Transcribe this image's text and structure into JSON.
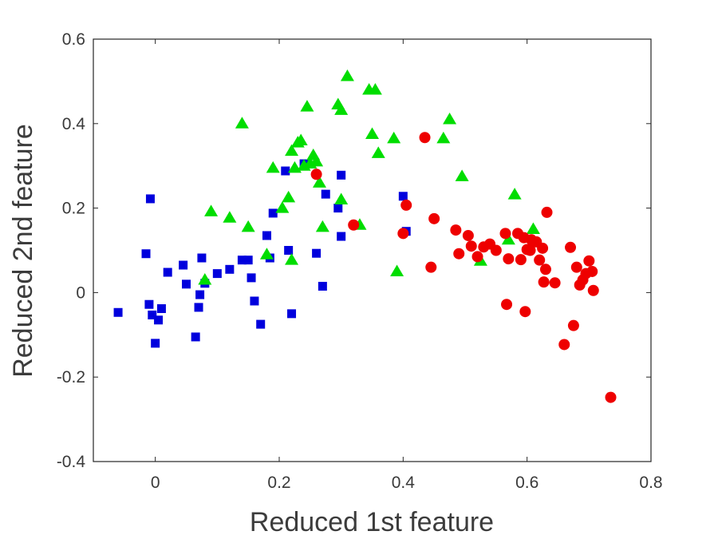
{
  "chart_data": {
    "type": "scatter",
    "title": "",
    "xlabel": "Reduced 1st feature",
    "ylabel": "Reduced 2nd feature",
    "xlim": [
      -0.1,
      0.8
    ],
    "ylim": [
      -0.4,
      0.6
    ],
    "xticks": [
      0,
      0.2,
      0.4,
      0.6,
      0.8
    ],
    "xtick_labels": [
      "0",
      "0.2",
      "0.4",
      "0.6",
      "0.8"
    ],
    "yticks": [
      -0.4,
      -0.2,
      0,
      0.2,
      0.4,
      0.6
    ],
    "ytick_labels": [
      "-0.4",
      "-0.2",
      "0",
      "0.2",
      "0.4",
      "0.6"
    ],
    "grid": false,
    "series": [
      {
        "marker": "square",
        "color": "#0000dd",
        "points": [
          [
            -0.06,
            -0.047
          ],
          [
            -0.015,
            0.092
          ],
          [
            -0.01,
            -0.028
          ],
          [
            -0.008,
            0.222
          ],
          [
            -0.005,
            -0.053
          ],
          [
            0.0,
            -0.12
          ],
          [
            0.005,
            -0.065
          ],
          [
            0.01,
            -0.038
          ],
          [
            0.02,
            0.048
          ],
          [
            0.045,
            0.065
          ],
          [
            0.05,
            0.02
          ],
          [
            0.065,
            -0.105
          ],
          [
            0.07,
            -0.035
          ],
          [
            0.072,
            -0.005
          ],
          [
            0.075,
            0.082
          ],
          [
            0.08,
            0.022
          ],
          [
            0.1,
            0.045
          ],
          [
            0.12,
            0.055
          ],
          [
            0.14,
            0.077
          ],
          [
            0.15,
            0.077
          ],
          [
            0.155,
            0.035
          ],
          [
            0.16,
            -0.02
          ],
          [
            0.17,
            -0.075
          ],
          [
            0.18,
            0.135
          ],
          [
            0.185,
            0.082
          ],
          [
            0.19,
            0.188
          ],
          [
            0.21,
            0.288
          ],
          [
            0.215,
            0.1
          ],
          [
            0.22,
            -0.05
          ],
          [
            0.24,
            0.305
          ],
          [
            0.26,
            0.093
          ],
          [
            0.27,
            0.015
          ],
          [
            0.275,
            0.233
          ],
          [
            0.295,
            0.2
          ],
          [
            0.3,
            0.278
          ],
          [
            0.3,
            0.133
          ],
          [
            0.4,
            0.228
          ],
          [
            0.405,
            0.145
          ]
        ]
      },
      {
        "marker": "triangle",
        "color": "#00dd00",
        "points": [
          [
            0.08,
            0.03
          ],
          [
            0.09,
            0.192
          ],
          [
            0.12,
            0.177
          ],
          [
            0.14,
            0.4
          ],
          [
            0.15,
            0.155
          ],
          [
            0.18,
            0.09
          ],
          [
            0.19,
            0.295
          ],
          [
            0.205,
            0.2
          ],
          [
            0.215,
            0.225
          ],
          [
            0.22,
            0.077
          ],
          [
            0.22,
            0.335
          ],
          [
            0.225,
            0.295
          ],
          [
            0.23,
            0.355
          ],
          [
            0.235,
            0.36
          ],
          [
            0.24,
            0.3
          ],
          [
            0.245,
            0.44
          ],
          [
            0.25,
            0.305
          ],
          [
            0.255,
            0.325
          ],
          [
            0.26,
            0.31
          ],
          [
            0.265,
            0.26
          ],
          [
            0.27,
            0.155
          ],
          [
            0.295,
            0.445
          ],
          [
            0.3,
            0.432
          ],
          [
            0.3,
            0.22
          ],
          [
            0.31,
            0.512
          ],
          [
            0.33,
            0.16
          ],
          [
            0.345,
            0.48
          ],
          [
            0.35,
            0.375
          ],
          [
            0.355,
            0.48
          ],
          [
            0.36,
            0.33
          ],
          [
            0.385,
            0.365
          ],
          [
            0.39,
            0.05
          ],
          [
            0.465,
            0.365
          ],
          [
            0.475,
            0.41
          ],
          [
            0.495,
            0.275
          ],
          [
            0.525,
            0.075
          ],
          [
            0.57,
            0.125
          ],
          [
            0.58,
            0.232
          ],
          [
            0.61,
            0.15
          ]
        ]
      },
      {
        "marker": "circle",
        "color": "#ee0000",
        "points": [
          [
            0.26,
            0.28
          ],
          [
            0.32,
            0.16
          ],
          [
            0.4,
            0.14
          ],
          [
            0.405,
            0.207
          ],
          [
            0.435,
            0.367
          ],
          [
            0.445,
            0.06
          ],
          [
            0.45,
            0.175
          ],
          [
            0.485,
            0.148
          ],
          [
            0.49,
            0.092
          ],
          [
            0.505,
            0.135
          ],
          [
            0.51,
            0.11
          ],
          [
            0.52,
            0.085
          ],
          [
            0.53,
            0.108
          ],
          [
            0.54,
            0.115
          ],
          [
            0.55,
            0.1
          ],
          [
            0.565,
            0.14
          ],
          [
            0.567,
            -0.028
          ],
          [
            0.57,
            0.08
          ],
          [
            0.585,
            0.14
          ],
          [
            0.59,
            0.078
          ],
          [
            0.595,
            0.13
          ],
          [
            0.597,
            -0.045
          ],
          [
            0.6,
            0.102
          ],
          [
            0.605,
            0.1
          ],
          [
            0.607,
            0.125
          ],
          [
            0.615,
            0.12
          ],
          [
            0.62,
            0.077
          ],
          [
            0.625,
            0.105
          ],
          [
            0.627,
            0.025
          ],
          [
            0.63,
            0.055
          ],
          [
            0.632,
            0.19
          ],
          [
            0.645,
            0.023
          ],
          [
            0.66,
            -0.123
          ],
          [
            0.67,
            0.107
          ],
          [
            0.675,
            -0.078
          ],
          [
            0.68,
            0.06
          ],
          [
            0.685,
            0.018
          ],
          [
            0.69,
            0.03
          ],
          [
            0.695,
            0.045
          ],
          [
            0.7,
            0.075
          ],
          [
            0.705,
            0.05
          ],
          [
            0.707,
            0.005
          ],
          [
            0.735,
            -0.248
          ]
        ]
      }
    ]
  }
}
